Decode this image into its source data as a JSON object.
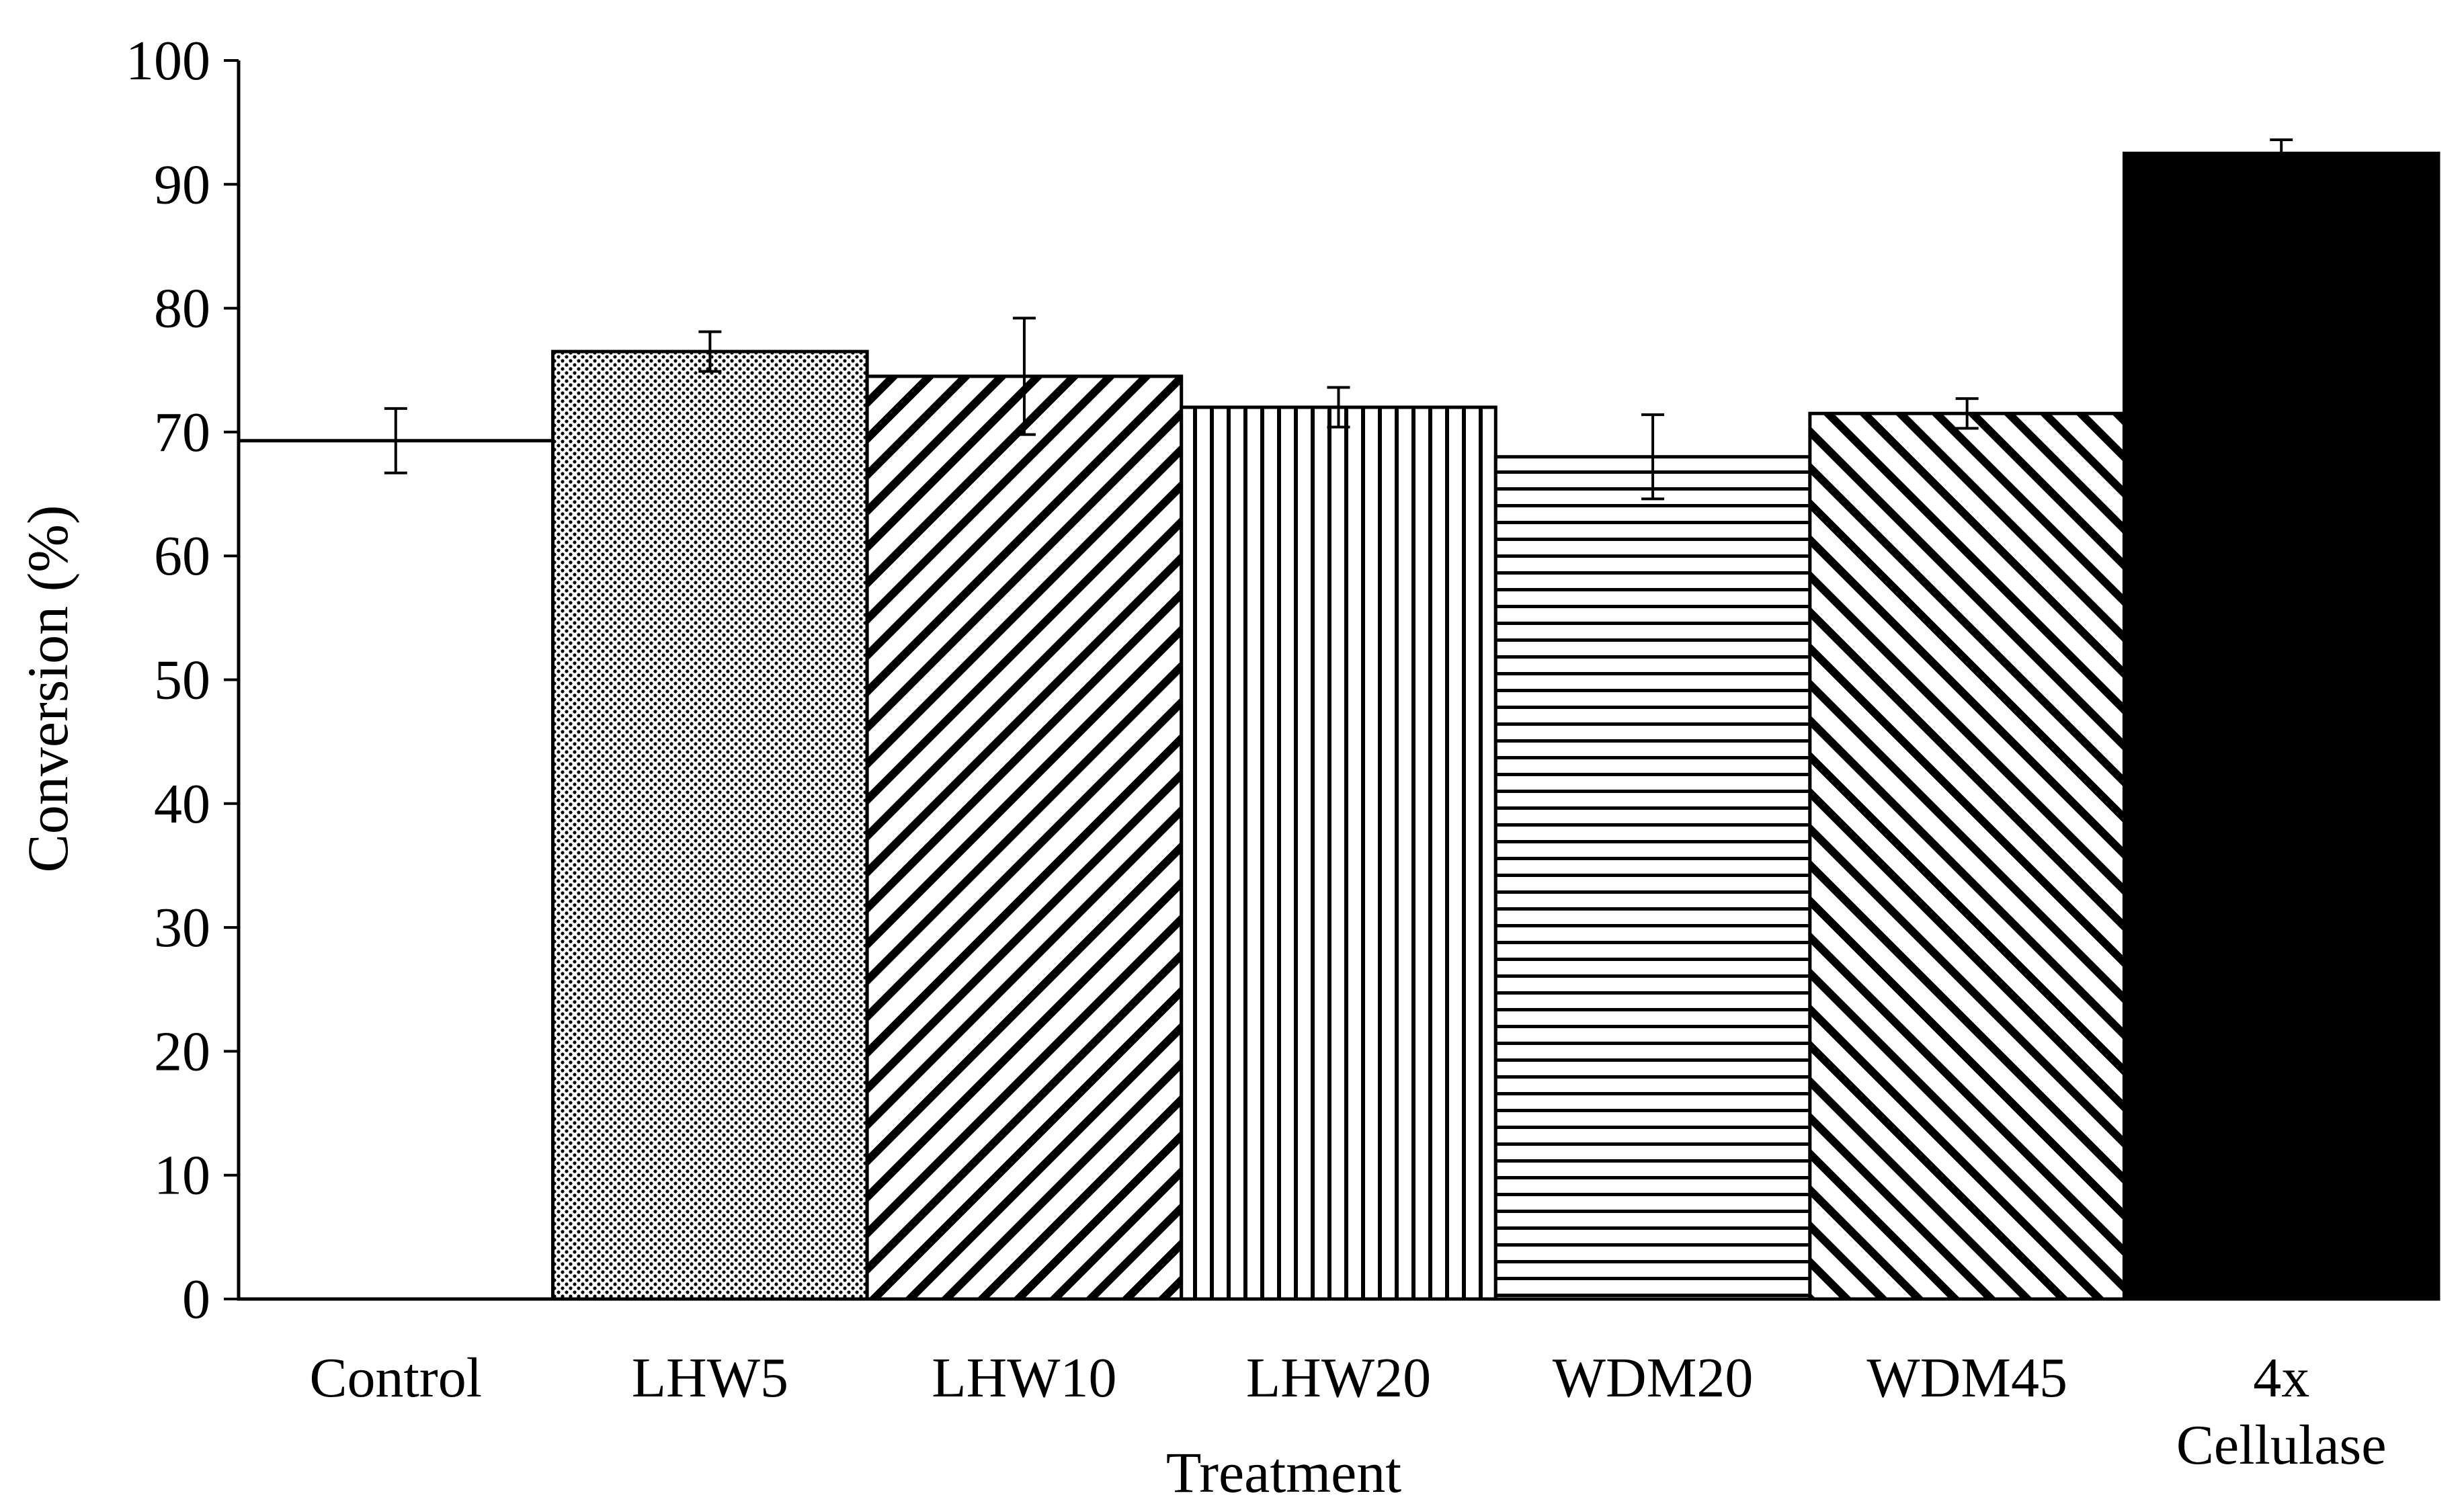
{
  "chart_data": {
    "type": "bar",
    "xlabel": "Treatment",
    "ylabel": "Conversion (%)",
    "ylim": [
      0,
      100
    ],
    "yticks": [
      0,
      10,
      20,
      30,
      40,
      50,
      60,
      70,
      80,
      90,
      100
    ],
    "grid": false,
    "legend": "none",
    "categories": [
      "Control",
      "LHW5",
      "LHW10",
      "LHW20",
      "WDM20",
      "WDM45",
      "4x Cellulase"
    ],
    "category_label_lines": [
      [
        "Control"
      ],
      [
        "LHW5"
      ],
      [
        "LHW10"
      ],
      [
        "LHW20"
      ],
      [
        "WDM20"
      ],
      [
        "WDM45"
      ],
      [
        "4x",
        "Cellulase"
      ]
    ],
    "values": [
      69.3,
      76.5,
      74.5,
      72.0,
      68.0,
      71.5,
      92.5
    ],
    "error_bars": [
      2.6,
      1.6,
      4.7,
      1.6,
      3.4,
      1.2,
      1.1
    ],
    "fill_patterns": [
      "none",
      "dots",
      "diagonal-up",
      "vertical",
      "horizontal",
      "diagonal-down",
      "solid"
    ],
    "bar_color": "#000000",
    "background_color": "#ffffff"
  }
}
